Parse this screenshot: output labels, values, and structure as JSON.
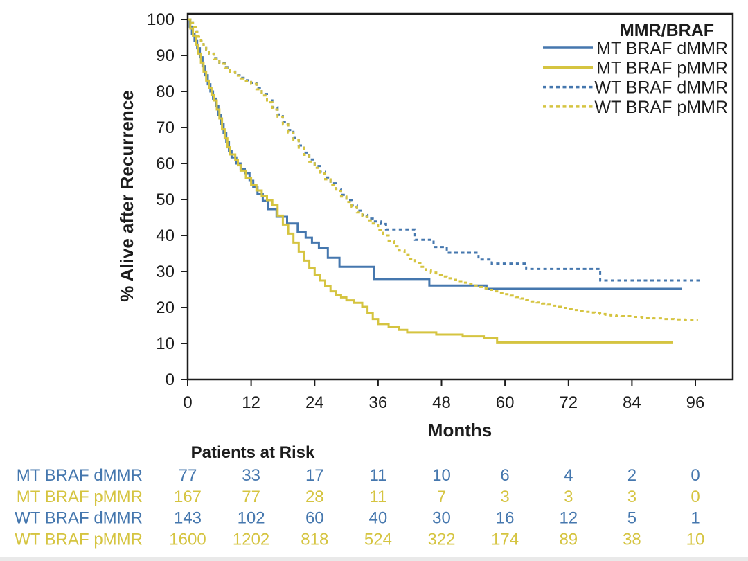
{
  "colors": {
    "blue": "#4577ae",
    "yellow": "#d5c440",
    "axis": "#1c1c1c"
  },
  "chart_data": {
    "type": "line",
    "subtype": "kaplan-meier-step",
    "xlabel": "Months",
    "ylabel": "% Alive after Recurrence",
    "xlim": [
      0,
      96
    ],
    "ylim": [
      0,
      100
    ],
    "x_ticks": [
      0,
      12,
      24,
      36,
      48,
      60,
      72,
      84,
      96
    ],
    "y_ticks": [
      0,
      10,
      20,
      30,
      40,
      50,
      60,
      70,
      80,
      90,
      100
    ],
    "grid": false,
    "legend_title": "MMR/BRAF",
    "legend_position": "top-right",
    "series": [
      {
        "name": "MT BRAF dMMR",
        "color": "blue",
        "dash": "solid",
        "end": 93.5,
        "steps": [
          [
            0,
            100
          ],
          [
            0.4,
            98
          ],
          [
            0.8,
            96
          ],
          [
            1.3,
            94
          ],
          [
            1.8,
            92
          ],
          [
            2.3,
            89.5
          ],
          [
            2.8,
            87
          ],
          [
            3.3,
            84.5
          ],
          [
            3.8,
            82
          ],
          [
            4.3,
            80
          ],
          [
            4.8,
            78
          ],
          [
            5.3,
            76
          ],
          [
            5.8,
            73.5
          ],
          [
            6.3,
            71
          ],
          [
            6.8,
            68.5
          ],
          [
            7.3,
            66
          ],
          [
            7.8,
            63.5
          ],
          [
            8.3,
            61.7
          ],
          [
            9.2,
            60
          ],
          [
            10,
            58.5
          ],
          [
            10.8,
            57.3
          ],
          [
            11.7,
            55.2
          ],
          [
            12.4,
            53.5
          ],
          [
            13.2,
            51.5
          ],
          [
            14.2,
            49.6
          ],
          [
            15.2,
            47.3
          ],
          [
            16.8,
            45.2
          ],
          [
            18.8,
            43.3
          ],
          [
            20.8,
            41
          ],
          [
            22.3,
            39.4
          ],
          [
            23.5,
            38
          ],
          [
            24.8,
            36.5
          ],
          [
            26.5,
            33.8
          ],
          [
            28.7,
            31.3
          ],
          [
            35.2,
            27.9
          ],
          [
            45.7,
            26.1
          ],
          [
            56.5,
            25.2
          ]
        ]
      },
      {
        "name": "MT BRAF pMMR",
        "color": "yellow",
        "dash": "solid",
        "end": 91.8,
        "steps": [
          [
            0,
            100
          ],
          [
            0.5,
            97.5
          ],
          [
            1,
            95.5
          ],
          [
            1.5,
            93
          ],
          [
            2,
            90.5
          ],
          [
            2.5,
            88
          ],
          [
            3,
            85.5
          ],
          [
            3.5,
            83
          ],
          [
            4,
            81
          ],
          [
            4.5,
            79
          ],
          [
            5,
            77.5
          ],
          [
            5.5,
            75
          ],
          [
            6,
            72.5
          ],
          [
            6.5,
            69.5
          ],
          [
            7,
            67
          ],
          [
            7.5,
            64.5
          ],
          [
            8,
            62.5
          ],
          [
            9,
            61
          ],
          [
            9.5,
            59.5
          ],
          [
            10,
            58
          ],
          [
            11,
            56
          ],
          [
            12,
            54
          ],
          [
            13,
            52.5
          ],
          [
            14,
            51
          ],
          [
            15,
            49.8
          ],
          [
            16,
            48.5
          ],
          [
            17,
            45.5
          ],
          [
            18,
            43
          ],
          [
            19,
            40.5
          ],
          [
            20,
            38
          ],
          [
            21,
            35.5
          ],
          [
            22,
            33
          ],
          [
            23,
            31
          ],
          [
            24,
            29
          ],
          [
            25,
            27.5
          ],
          [
            26,
            26
          ],
          [
            27,
            24.5
          ],
          [
            28,
            23.5
          ],
          [
            29,
            22.8
          ],
          [
            30,
            22
          ],
          [
            31.5,
            21.3
          ],
          [
            33,
            20.2
          ],
          [
            34,
            18.5
          ],
          [
            35,
            16.8
          ],
          [
            36,
            15.4
          ],
          [
            38,
            14.6
          ],
          [
            40,
            13.8
          ],
          [
            41.5,
            13.1
          ],
          [
            47,
            12.5
          ],
          [
            52,
            12
          ],
          [
            56,
            11.6
          ],
          [
            58.5,
            10.3
          ]
        ]
      },
      {
        "name": "WT BRAF dMMR",
        "color": "blue",
        "dash": "dashed",
        "end": 96.8,
        "steps": [
          [
            0,
            100
          ],
          [
            0.5,
            99
          ],
          [
            1,
            97.8
          ],
          [
            1.5,
            96.5
          ],
          [
            2,
            95.2
          ],
          [
            2.5,
            94
          ],
          [
            3,
            92.8
          ],
          [
            3.5,
            91.6
          ],
          [
            4,
            90.5
          ],
          [
            5,
            89.1
          ],
          [
            6,
            87.8
          ],
          [
            7,
            86.6
          ],
          [
            8,
            85.5
          ],
          [
            9,
            84.5
          ],
          [
            10,
            83.8
          ],
          [
            11,
            83.1
          ],
          [
            12,
            82.4
          ],
          [
            13,
            81
          ],
          [
            14,
            79.3
          ],
          [
            15,
            77.5
          ],
          [
            16,
            75.6
          ],
          [
            17,
            73.6
          ],
          [
            18,
            71.5
          ],
          [
            19,
            69.3
          ],
          [
            20,
            67.1
          ],
          [
            21,
            65
          ],
          [
            22,
            63
          ],
          [
            23,
            61.1
          ],
          [
            24,
            59.3
          ],
          [
            25,
            57.7
          ],
          [
            26,
            56.1
          ],
          [
            27,
            54.5
          ],
          [
            28,
            52.9
          ],
          [
            29,
            51.3
          ],
          [
            30,
            49.8
          ],
          [
            31,
            48.3
          ],
          [
            32,
            46.9
          ],
          [
            33,
            45.7
          ],
          [
            34,
            44.7
          ],
          [
            35,
            43.9
          ],
          [
            36.5,
            43.2
          ],
          [
            37.5,
            41.7
          ],
          [
            43,
            38.8
          ],
          [
            46.5,
            36.8
          ],
          [
            49,
            35.2
          ],
          [
            55,
            33.3
          ],
          [
            57.5,
            32.2
          ],
          [
            64,
            30.7
          ],
          [
            78,
            27.5
          ]
        ]
      },
      {
        "name": "WT BRAF pMMR",
        "color": "yellow",
        "dash": "dashed",
        "end": 96.5,
        "steps": [
          [
            0,
            100
          ],
          [
            0.5,
            99
          ],
          [
            1,
            97.8
          ],
          [
            1.5,
            96.5
          ],
          [
            2,
            95.2
          ],
          [
            2.5,
            94
          ],
          [
            3,
            92.8
          ],
          [
            3.5,
            91.6
          ],
          [
            4,
            90.4
          ],
          [
            5,
            89
          ],
          [
            6,
            87.7
          ],
          [
            7,
            86.5
          ],
          [
            8,
            85.4
          ],
          [
            9,
            84.4
          ],
          [
            10,
            83.6
          ],
          [
            11,
            82.9
          ],
          [
            12,
            82.1
          ],
          [
            13,
            80.6
          ],
          [
            14,
            78.9
          ],
          [
            15,
            77
          ],
          [
            16,
            75
          ],
          [
            17,
            73
          ],
          [
            18,
            70.8
          ],
          [
            19,
            68.6
          ],
          [
            20,
            66.5
          ],
          [
            21,
            64.4
          ],
          [
            22,
            62.4
          ],
          [
            23,
            60.5
          ],
          [
            24,
            58.8
          ],
          [
            25,
            57.2
          ],
          [
            26,
            55.6
          ],
          [
            27,
            54
          ],
          [
            28,
            52.4
          ],
          [
            29,
            50.8
          ],
          [
            30,
            49.3
          ],
          [
            31,
            47.8
          ],
          [
            32,
            46.4
          ],
          [
            33,
            45.2
          ],
          [
            34,
            44.2
          ],
          [
            35,
            43.3
          ],
          [
            36,
            41.5
          ],
          [
            37,
            40
          ],
          [
            38,
            38.5
          ],
          [
            39,
            37
          ],
          [
            40,
            35.8
          ],
          [
            41,
            34.6
          ],
          [
            42,
            33.5
          ],
          [
            43,
            32.4
          ],
          [
            44,
            31.3
          ],
          [
            45,
            30.3
          ],
          [
            46,
            29.7
          ],
          [
            47,
            29.1
          ],
          [
            48,
            28.6
          ],
          [
            49,
            28.1
          ],
          [
            50,
            27.7
          ],
          [
            51,
            27.3
          ],
          [
            52,
            26.9
          ],
          [
            53,
            26.5
          ],
          [
            54,
            26.1
          ],
          [
            55,
            25.7
          ],
          [
            56,
            25.3
          ],
          [
            57,
            24.9
          ],
          [
            58,
            24.5
          ],
          [
            59,
            24.1
          ],
          [
            60,
            23.7
          ],
          [
            61,
            23.3
          ],
          [
            62,
            22.9
          ],
          [
            63,
            22.5
          ],
          [
            64,
            22.1
          ],
          [
            65,
            21.7
          ],
          [
            66,
            21.4
          ],
          [
            67,
            21.1
          ],
          [
            68,
            20.8
          ],
          [
            69,
            20.5
          ],
          [
            70,
            20.2
          ],
          [
            71,
            19.9
          ],
          [
            72,
            19.6
          ],
          [
            73,
            19.3
          ],
          [
            74,
            19
          ],
          [
            75,
            18.8
          ],
          [
            76,
            18.6
          ],
          [
            77,
            18.4
          ],
          [
            78,
            18.2
          ],
          [
            79,
            18
          ],
          [
            80,
            17.8
          ],
          [
            81,
            17.7
          ],
          [
            82,
            17.6
          ],
          [
            84,
            17.4
          ],
          [
            86,
            17.2
          ],
          [
            88,
            17
          ],
          [
            90,
            16.8
          ],
          [
            92,
            16.7
          ],
          [
            94,
            16.6
          ]
        ]
      }
    ]
  },
  "risk_table": {
    "title": "Patients at Risk",
    "months": [
      0,
      12,
      24,
      36,
      48,
      60,
      72,
      84,
      96
    ],
    "rows": [
      {
        "label": "MT BRAF dMMR",
        "color": "blue",
        "counts": [
          77,
          33,
          17,
          11,
          10,
          6,
          4,
          2,
          0
        ]
      },
      {
        "label": "MT BRAF pMMR",
        "color": "yellow",
        "counts": [
          167,
          77,
          28,
          11,
          7,
          3,
          3,
          3,
          0
        ]
      },
      {
        "label": "WT BRAF dMMR",
        "color": "blue",
        "counts": [
          143,
          102,
          60,
          40,
          30,
          16,
          12,
          5,
          1
        ]
      },
      {
        "label": "WT BRAF pMMR",
        "color": "yellow",
        "counts": [
          1600,
          1202,
          818,
          524,
          322,
          174,
          89,
          38,
          10
        ]
      }
    ]
  }
}
